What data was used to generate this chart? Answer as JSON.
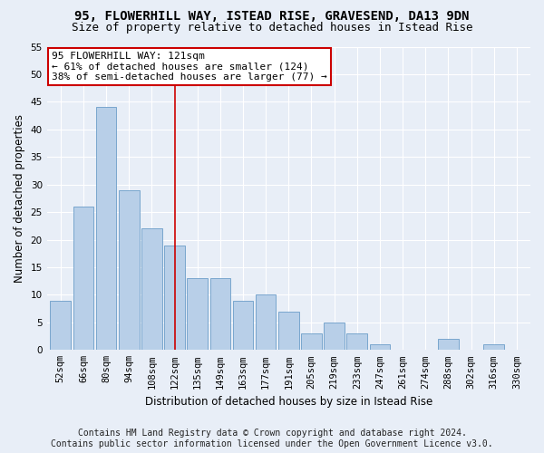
{
  "title": "95, FLOWERHILL WAY, ISTEAD RISE, GRAVESEND, DA13 9DN",
  "subtitle": "Size of property relative to detached houses in Istead Rise",
  "xlabel": "Distribution of detached houses by size in Istead Rise",
  "ylabel": "Number of detached properties",
  "footer_line1": "Contains HM Land Registry data © Crown copyright and database right 2024.",
  "footer_line2": "Contains public sector information licensed under the Open Government Licence v3.0.",
  "bin_labels": [
    "52sqm",
    "66sqm",
    "80sqm",
    "94sqm",
    "108sqm",
    "122sqm",
    "135sqm",
    "149sqm",
    "163sqm",
    "177sqm",
    "191sqm",
    "205sqm",
    "219sqm",
    "233sqm",
    "247sqm",
    "261sqm",
    "274sqm",
    "288sqm",
    "302sqm",
    "316sqm",
    "330sqm"
  ],
  "bar_values": [
    9,
    26,
    44,
    29,
    22,
    19,
    13,
    13,
    9,
    10,
    7,
    3,
    5,
    3,
    1,
    0,
    0,
    2,
    0,
    1,
    0
  ],
  "bar_color": "#b8cfe8",
  "bar_edge_color": "#6b9dc8",
  "subject_bin_index": 5,
  "vline_color": "#cc0000",
  "annotation_text": "95 FLOWERHILL WAY: 121sqm\n← 61% of detached houses are smaller (124)\n38% of semi-detached houses are larger (77) →",
  "annotation_box_color": "#ffffff",
  "annotation_box_edge_color": "#cc0000",
  "ylim": [
    0,
    55
  ],
  "yticks": [
    0,
    5,
    10,
    15,
    20,
    25,
    30,
    35,
    40,
    45,
    50,
    55
  ],
  "background_color": "#e8eef7",
  "grid_color": "#ffffff",
  "title_fontsize": 10,
  "subtitle_fontsize": 9,
  "axis_label_fontsize": 8.5,
  "tick_fontsize": 7.5,
  "annotation_fontsize": 8,
  "footer_fontsize": 7
}
